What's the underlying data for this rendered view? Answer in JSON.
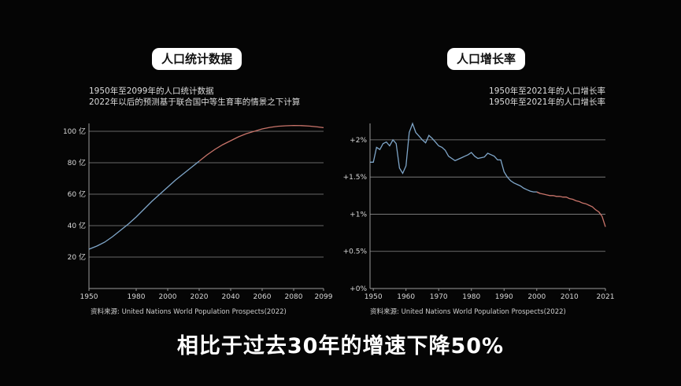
{
  "caption": "相比于过去30年的增速下降50%",
  "chart_data": [
    {
      "type": "line",
      "title": "人口统计数据",
      "subtitle": [
        "1950年至2099年的人口统计数据",
        "2022年以后的预测基于联合国中等生育率的情景之下计算"
      ],
      "source": "资料来源: United Nations World Population Prospects(2022)",
      "x_ticks": [
        "1950",
        "1980",
        "2000",
        "2020",
        "2040",
        "2060",
        "2080",
        "2099"
      ],
      "y_ticks": [
        "20 亿",
        "40 亿",
        "60 亿",
        "80 亿",
        "100 亿"
      ],
      "xlim": [
        1950,
        2099
      ],
      "ylim": [
        0,
        104
      ],
      "grid": true,
      "colors": {
        "historical": "#7fa6c9",
        "projection": "#c9746a"
      },
      "series": [
        {
          "x": [
            1950,
            1955,
            1960,
            1965,
            1970,
            1975,
            1980,
            1985,
            1990,
            1995,
            2000,
            2005,
            2010,
            2015,
            2020,
            2025,
            2030,
            2035,
            2040,
            2045,
            2050,
            2055,
            2060,
            2065,
            2070,
            2075,
            2080,
            2085,
            2090,
            2095,
            2099
          ],
          "values": [
            25,
            27,
            29.5,
            33,
            37,
            41,
            45.5,
            50.5,
            55.5,
            60,
            64.5,
            69,
            73,
            77,
            81,
            85,
            88.5,
            91.5,
            94,
            96.5,
            98.5,
            100,
            101.5,
            102.5,
            103.2,
            103.5,
            103.7,
            103.6,
            103.3,
            102.8,
            102.3
          ]
        }
      ]
    },
    {
      "type": "line",
      "title": "人口增长率",
      "subtitle": [
        "1950年至2021年的人口增长率",
        "1950年至2021年的人口增长率"
      ],
      "source": "资料来源: United Nations World Population Prospects(2022)",
      "x_ticks": [
        "1950",
        "1960",
        "1970",
        "1980",
        "1990",
        "2000",
        "2010",
        "2021"
      ],
      "y_ticks": [
        "+0%",
        "+0.5%",
        "+1%",
        "+1.5%",
        "+2%"
      ],
      "xlim": [
        1949,
        2021
      ],
      "ylim": [
        0,
        2.2
      ],
      "grid": true,
      "colors": {
        "historical": "#7fa6c9",
        "projection": "#c9746a"
      },
      "series": [
        {
          "x": [
            1949,
            1950,
            1951,
            1952,
            1953,
            1954,
            1955,
            1956,
            1957,
            1958,
            1959,
            1960,
            1961,
            1962,
            1963,
            1964,
            1965,
            1966,
            1967,
            1968,
            1969,
            1970,
            1971,
            1972,
            1973,
            1974,
            1975,
            1976,
            1977,
            1978,
            1979,
            1980,
            1981,
            1982,
            1983,
            1984,
            1985,
            1986,
            1987,
            1988,
            1989,
            1990,
            1991,
            1992,
            1993,
            1994,
            1995,
            1996,
            1997,
            1998,
            1999,
            2000,
            2001,
            2002,
            2003,
            2004,
            2005,
            2006,
            2007,
            2008,
            2009,
            2010,
            2011,
            2012,
            2013,
            2014,
            2015,
            2016,
            2017,
            2018,
            2019,
            2020,
            2021
          ],
          "values": [
            1.7,
            1.7,
            1.9,
            1.87,
            1.95,
            1.97,
            1.92,
            2.0,
            1.95,
            1.62,
            1.55,
            1.65,
            2.1,
            2.22,
            2.1,
            2.05,
            2.0,
            1.96,
            2.06,
            2.02,
            1.97,
            1.92,
            1.9,
            1.86,
            1.78,
            1.75,
            1.72,
            1.74,
            1.76,
            1.78,
            1.8,
            1.83,
            1.78,
            1.75,
            1.76,
            1.77,
            1.82,
            1.8,
            1.78,
            1.73,
            1.73,
            1.57,
            1.5,
            1.45,
            1.42,
            1.4,
            1.38,
            1.35,
            1.33,
            1.31,
            1.3,
            1.3,
            1.28,
            1.27,
            1.26,
            1.25,
            1.25,
            1.24,
            1.24,
            1.23,
            1.23,
            1.21,
            1.2,
            1.18,
            1.17,
            1.15,
            1.14,
            1.12,
            1.1,
            1.06,
            1.03,
            0.97,
            0.83
          ]
        }
      ]
    }
  ]
}
